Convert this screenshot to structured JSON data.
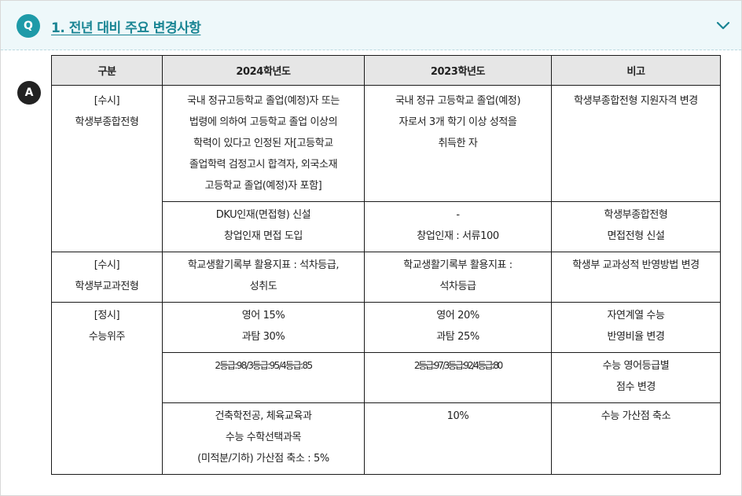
{
  "question": {
    "badge": "Q",
    "title": "1. 전년 대비 주요 변경사항",
    "toggle_icon": "chevron-down-icon"
  },
  "answer": {
    "badge": "A"
  },
  "table": {
    "headers": [
      "구분",
      "2024학년도",
      "2023학년도",
      "비고"
    ],
    "groups": [
      {
        "category": [
          "[수시]",
          "학생부종합전형"
        ],
        "rows": [
          {
            "y2024": [
              "국내 정규고등학교 졸업(예정)자 또는",
              "법령에 의하여 고등학교 졸업 이상의",
              "학력이 있다고 인정된 자[고등학교",
              "졸업학력 검정고시 합격자, 외국소재",
              "고등학교 졸업(예정)자 포함]"
            ],
            "y2023": [
              "국내 정규 고등학교 졸업(예정)",
              "자로서 3개 학기 이상 성적을",
              "취득한 자"
            ],
            "note": [
              "학생부종합전형 지원자격 변경"
            ]
          },
          {
            "y2024": [
              "DKU인재(면접형) 신설",
              "창업인재 면접 도입"
            ],
            "y2023": [
              "-",
              "창업인재 : 서류100"
            ],
            "note": [
              "학생부종합전형",
              "면접전형 신설"
            ]
          }
        ]
      },
      {
        "category": [
          "[수시]",
          "학생부교과전형"
        ],
        "rows": [
          {
            "y2024": [
              "학교생활기록부 활용지표 : 석차등급,",
              "성취도"
            ],
            "y2023": [
              "학교생활기록부 활용지표 :",
              "석차등급"
            ],
            "note": [
              "학생부 교과성적 반영방법 변경"
            ]
          }
        ]
      },
      {
        "category": [
          "[정시]",
          "수능위주"
        ],
        "rows": [
          {
            "y2024": [
              "영어 15%",
              "과탐 30%"
            ],
            "y2023": [
              "영어 20%",
              "과탐 25%"
            ],
            "note": [
              "자연계열 수능",
              "반영비율 변경"
            ]
          },
          {
            "y2024": [
              "2등급:98/3등급:95/4등급:85"
            ],
            "y2023": [
              "2등급:97/3등급:92/4등급:80"
            ],
            "note": [
              "수능 영어등급별",
              "점수 변경"
            ]
          },
          {
            "y2024": [
              "건축학전공, 체육교육과",
              "수능 수학선택과목",
              "(미적분/기하) 가산점 축소 : 5%"
            ],
            "y2023": [
              "10%"
            ],
            "note": [
              "수능 가산점 축소"
            ]
          }
        ]
      }
    ]
  },
  "colors": {
    "accent": "#1e9aa8",
    "title": "#1a8594",
    "header_bg": "#eef8fa",
    "table_head_bg": "#e6e6e6"
  }
}
